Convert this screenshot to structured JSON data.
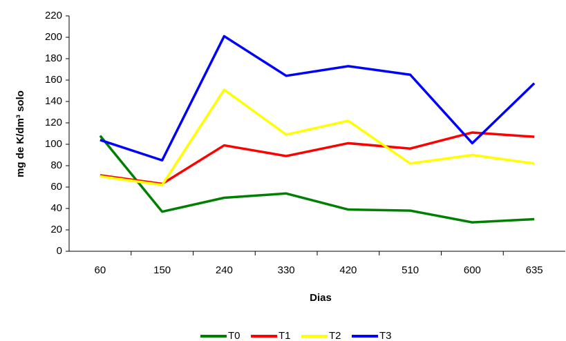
{
  "chart_data": {
    "type": "line",
    "x_label": "Dias",
    "y_label": "mg de K/dm³ solo",
    "categories": [
      "60",
      "150",
      "240",
      "330",
      "420",
      "510",
      "600",
      "635"
    ],
    "series": [
      {
        "name": "T0",
        "color": "#008000",
        "values": [
          108,
          37,
          50,
          54,
          39,
          38,
          27,
          30
        ]
      },
      {
        "name": "T1",
        "color": "#ff0000",
        "values": [
          71,
          63,
          99,
          89,
          101,
          96,
          111,
          107
        ]
      },
      {
        "name": "T2",
        "color": "#ffff00",
        "values": [
          70,
          62,
          151,
          109,
          122,
          82,
          90,
          82
        ]
      },
      {
        "name": "T3",
        "color": "#0000ff",
        "values": [
          104,
          85,
          201,
          164,
          173,
          165,
          101,
          157
        ]
      }
    ],
    "ylim": [
      0,
      220
    ],
    "yticks": [
      0,
      20,
      40,
      60,
      80,
      100,
      120,
      140,
      160,
      180,
      200,
      220
    ],
    "grid": false,
    "legend": "bottom"
  }
}
